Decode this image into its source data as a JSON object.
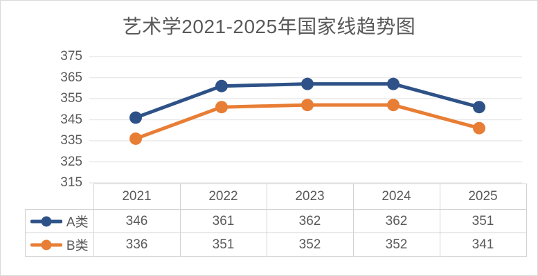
{
  "title": "艺术学2021-2025年国家线趋势图",
  "colors": {
    "series_a": "#2e5287",
    "series_b": "#e87e35",
    "text": "#595959",
    "gridline": "#e9e9e9",
    "table_border": "#d2d2d2",
    "figure_border": "#d9d9d9",
    "background": "#ffffff"
  },
  "chart_data": {
    "type": "line",
    "title": "艺术学2021-2025年国家线趋势图",
    "categories": [
      "2021",
      "2022",
      "2023",
      "2024",
      "2025"
    ],
    "series": [
      {
        "id": "a",
        "name": "A类",
        "values": [
          346,
          361,
          362,
          362,
          351
        ],
        "color": "#2e5287",
        "marker": "circle"
      },
      {
        "id": "b",
        "name": "B类",
        "values": [
          336,
          351,
          352,
          352,
          341
        ],
        "color": "#e87e35",
        "marker": "circle"
      }
    ],
    "ylim": [
      315,
      375
    ],
    "yticks": [
      315,
      325,
      335,
      345,
      355,
      365,
      375
    ],
    "xlabel": "",
    "ylabel": "",
    "grid": true,
    "legend_position": "data-table-left",
    "data_table_shown": true
  }
}
